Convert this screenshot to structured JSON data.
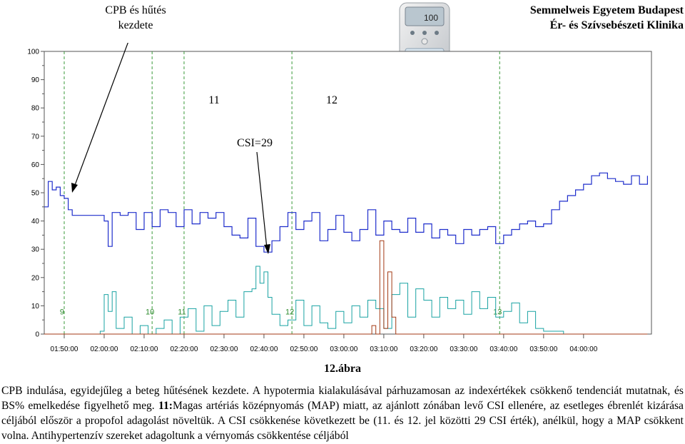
{
  "header": {
    "line1": "Semmelweis Egyetem Budapest",
    "line2": "Ér- és Szívsebészeti Klinika"
  },
  "annotations": {
    "cpb_line1": "CPB és hűtés",
    "cpb_line2": "kezdete",
    "marker_11": "11",
    "marker_12": "12",
    "csi": "CSI=29"
  },
  "device": {
    "display_value": "100"
  },
  "figure_label": "12.ábra",
  "caption": {
    "text1": "CPB indulása, egyidejűleg a beteg hűtésének kezdete. A hypotermia kialakulásával párhuzamosan az indexértékek csökkenő tendenciát mutatnak, és BS% emelkedése figyelhető meg.",
    "bold": "11:",
    "text2": "Magas artériás középnyomás (MAP) miatt, az ajánlott zónában levő CSI ellenére, az esetleges ébrenlét kizárása céljából először a propofol adagolást növeltük. A CSI csökkenése következett be (11. és 12. jel közötti 29 CSI érték), anélkül, hogy a MAP csökkent volna. Antihypertenzív szereket adagoltunk a vérnyomás csökkentése céljából"
  },
  "chart_data": {
    "type": "line",
    "title": "",
    "xlabel": "",
    "ylabel": "",
    "ylim": [
      0,
      100
    ],
    "yticks": [
      0,
      10,
      20,
      30,
      40,
      50,
      60,
      70,
      80,
      90,
      100
    ],
    "xlim": [
      "01:45:00",
      "04:17:00"
    ],
    "xticks": [
      "01:50:00",
      "02:00:00",
      "02:10:00",
      "02:20:00",
      "02:30:00",
      "02:40:00",
      "02:50:00",
      "03:00:00",
      "03:10:00",
      "03:20:00",
      "03:30:00",
      "03:40:00",
      "03:50:00",
      "04:00:00"
    ],
    "grid": false,
    "event_markers": [
      {
        "time": "01:50:00",
        "label": "9"
      },
      {
        "time": "02:12:00",
        "label": "10"
      },
      {
        "time": "02:20:00",
        "label": "11"
      },
      {
        "time": "02:47:00",
        "label": "12"
      },
      {
        "time": "03:39:00",
        "label": "13"
      }
    ],
    "series": [
      {
        "color": "#1f2ecc",
        "x": [
          "01:45:00",
          "01:46:00",
          "01:47:00",
          "01:48:00",
          "01:49:00",
          "01:50:00",
          "01:51:00",
          "01:52:00",
          "01:53:00",
          "01:55:00",
          "01:57:00",
          "01:59:00",
          "02:00:00",
          "02:01:00",
          "02:02:00",
          "02:04:00",
          "02:06:00",
          "02:08:00",
          "02:10:00",
          "02:12:00",
          "02:14:00",
          "02:16:00",
          "02:18:00",
          "02:20:00",
          "02:22:00",
          "02:24:00",
          "02:26:00",
          "02:28:00",
          "02:30:00",
          "02:32:00",
          "02:34:00",
          "02:36:00",
          "02:38:00",
          "02:40:00",
          "02:42:00",
          "02:44:00",
          "02:46:00",
          "02:48:00",
          "02:50:00",
          "02:52:00",
          "02:54:00",
          "02:56:00",
          "02:58:00",
          "03:00:00",
          "03:02:00",
          "03:04:00",
          "03:06:00",
          "03:08:00",
          "03:10:00",
          "03:12:00",
          "03:14:00",
          "03:16:00",
          "03:18:00",
          "03:20:00",
          "03:22:00",
          "03:24:00",
          "03:26:00",
          "03:28:00",
          "03:30:00",
          "03:32:00",
          "03:34:00",
          "03:36:00",
          "03:38:00",
          "03:40:00",
          "03:42:00",
          "03:44:00",
          "03:46:00",
          "03:48:00",
          "03:50:00",
          "03:52:00",
          "03:54:00",
          "03:56:00",
          "03:58:00",
          "04:00:00",
          "04:02:00",
          "04:04:00",
          "04:06:00",
          "04:08:00",
          "04:10:00",
          "04:12:00",
          "04:14:00",
          "04:16:00"
        ],
        "values": [
          45,
          54,
          51,
          52,
          49,
          48,
          44,
          42,
          42,
          42,
          42,
          42,
          40,
          31,
          43,
          42,
          43,
          37,
          43,
          38,
          44,
          43,
          38,
          44,
          39,
          43,
          41,
          43,
          38,
          35,
          34,
          41,
          31,
          29,
          33,
          38,
          43,
          37,
          40,
          43,
          33,
          37,
          42,
          36,
          33,
          37,
          44,
          35,
          40,
          37,
          36,
          41,
          36,
          39,
          34,
          37,
          35,
          32,
          37,
          35,
          37,
          38,
          32,
          35,
          37,
          39,
          40,
          38,
          39,
          44,
          47,
          49,
          51,
          53,
          56,
          57,
          55,
          54,
          53,
          56,
          53,
          56
        ]
      },
      {
        "color": "#1aa3a3",
        "x": [
          "01:45:00",
          "01:48:00",
          "01:51:00",
          "01:54:00",
          "01:57:00",
          "01:59:00",
          "02:00:00",
          "02:01:00",
          "02:02:00",
          "02:03:00",
          "02:05:00",
          "02:07:00",
          "02:09:00",
          "02:11:00",
          "02:13:00",
          "02:15:00",
          "02:17:00",
          "02:19:00",
          "02:21:00",
          "02:23:00",
          "02:25:00",
          "02:27:00",
          "02:29:00",
          "02:31:00",
          "02:33:00",
          "02:35:00",
          "02:37:00",
          "02:38:00",
          "02:39:00",
          "02:40:00",
          "02:41:00",
          "02:42:00",
          "02:44:00",
          "02:46:00",
          "02:48:00",
          "02:50:00",
          "02:52:00",
          "02:54:00",
          "02:56:00",
          "02:58:00",
          "03:00:00",
          "03:02:00",
          "03:04:00",
          "03:06:00",
          "03:08:00",
          "03:10:00",
          "03:12:00",
          "03:14:00",
          "03:16:00",
          "03:18:00",
          "03:20:00",
          "03:22:00",
          "03:24:00",
          "03:26:00",
          "03:28:00",
          "03:30:00",
          "03:32:00",
          "03:34:00",
          "03:36:00",
          "03:38:00",
          "03:40:00",
          "03:42:00",
          "03:44:00",
          "03:46:00",
          "03:48:00",
          "03:50:00",
          "03:55:00",
          "04:00:00",
          "04:05:00",
          "04:10:00",
          "04:16:00"
        ],
        "values": [
          0,
          0,
          0,
          0,
          0,
          1,
          14,
          8,
          15,
          2,
          6,
          0,
          3,
          0,
          2,
          5,
          0,
          6,
          9,
          1,
          10,
          3,
          8,
          12,
          6,
          15,
          16,
          24,
          18,
          22,
          13,
          7,
          3,
          5,
          12,
          3,
          10,
          4,
          2,
          8,
          4,
          10,
          6,
          12,
          9,
          2,
          14,
          18,
          6,
          16,
          12,
          6,
          13,
          9,
          12,
          7,
          15,
          9,
          13,
          6,
          8,
          11,
          4,
          8,
          2,
          1,
          0,
          0,
          0,
          0,
          0
        ]
      },
      {
        "color": "#a33a14",
        "x": [
          "01:45:00",
          "03:06:00",
          "03:07:00",
          "03:08:00",
          "03:09:00",
          "03:10:00",
          "03:11:00",
          "03:12:00",
          "03:13:00",
          "04:16:00"
        ],
        "values": [
          0,
          0,
          3,
          0,
          33,
          2,
          22,
          6,
          0,
          0
        ]
      }
    ]
  }
}
